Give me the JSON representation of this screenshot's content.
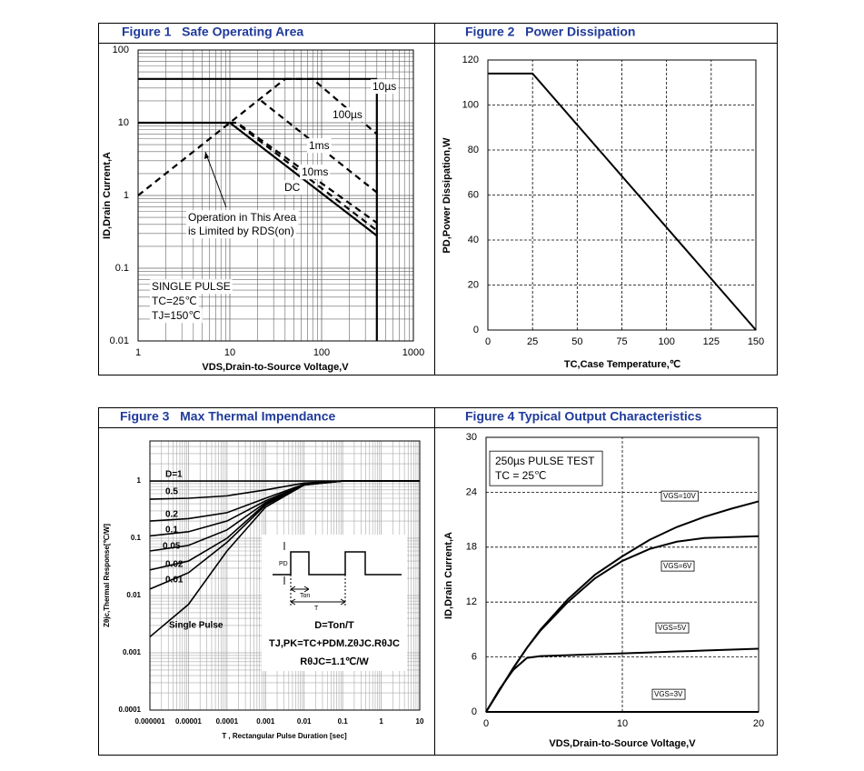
{
  "chart_data": [
    {
      "type": "line",
      "title": "Figure 1   Safe Operating Area",
      "x_label": "VDS,Drain-to-Source Voltage,V",
      "y_label": "ID,Drain Current,A",
      "log_x": true,
      "log_y": true,
      "grid": true,
      "xlim": [
        1,
        1000
      ],
      "ylim": [
        0.01,
        100
      ],
      "xticks": [
        1,
        10,
        100,
        1000
      ],
      "yticks": [
        0.01,
        0.1,
        1,
        10,
        100
      ],
      "series": [
        {
          "color": "#000000",
          "dashed": true,
          "x": [
            1,
            40
          ],
          "values": [
            1,
            40
          ]
        },
        {
          "color": "#000000",
          "x": [
            1,
            400
          ],
          "values": [
            40,
            40
          ]
        },
        {
          "color": "#000000",
          "x": [
            1,
            10
          ],
          "values": [
            10,
            10
          ]
        },
        {
          "color": "#000000",
          "x": [
            400,
            400
          ],
          "values": [
            0.01,
            40
          ]
        },
        {
          "name": "10µs",
          "color": "#000000",
          "dashed": true,
          "x": [
            40,
            80,
            400
          ],
          "values": [
            40,
            40,
            7
          ]
        },
        {
          "name": "100µs",
          "color": "#000000",
          "dashed": true,
          "x": [
            22,
            400
          ],
          "values": [
            20,
            1.1
          ]
        },
        {
          "name": "1ms",
          "color": "#000000",
          "dashed": true,
          "x": [
            10,
            12,
            400
          ],
          "values": [
            10,
            10,
            0.42
          ]
        },
        {
          "name": "10ms",
          "color": "#000000",
          "dashed": true,
          "x": [
            13,
            400
          ],
          "values": [
            9,
            0.33
          ]
        },
        {
          "name": "DC",
          "color": "#000000",
          "x": [
            10,
            400
          ],
          "values": [
            10,
            0.28
          ]
        }
      ],
      "annotations": [
        "Operation in This Area",
        "is Limited by RDS(on)",
        "SINGLE PULSE",
        "TC=25℃",
        "TJ=150℃"
      ]
    },
    {
      "type": "line",
      "title": "Figure 2   Power Dissipation",
      "x_label": "TC,Case Temperature,℃",
      "y_label": "PD,Power Dissipation,W",
      "grid": true,
      "grid_style": "dashed",
      "xlim": [
        0,
        150
      ],
      "ylim": [
        0,
        120
      ],
      "xticks": [
        0,
        25,
        50,
        75,
        100,
        125,
        150
      ],
      "yticks": [
        0,
        20,
        40,
        60,
        80,
        100,
        120
      ],
      "x": [
        0,
        25,
        150
      ],
      "series": [
        {
          "color": "#000000",
          "values": [
            114,
            114,
            0
          ]
        }
      ]
    },
    {
      "type": "line",
      "title": "Figure 3   Max Thermal Impendance",
      "x_label": "T , Rectangular Pulse Duration [sec]",
      "y_label": "Zθjc,Thermal Response[℃/W]",
      "log_x": true,
      "log_y": true,
      "grid": true,
      "xlim": [
        1e-06,
        10
      ],
      "ylim": [
        0.0001,
        5
      ],
      "xticks": [
        1e-06,
        1e-05,
        0.0001,
        0.001,
        0.01,
        0.1,
        1,
        10
      ],
      "yticks": [
        0.0001,
        0.001,
        0.01,
        0.1,
        1
      ],
      "x": [
        1e-06,
        1e-05,
        0.0001,
        0.001,
        0.01,
        0.1,
        1,
        10
      ],
      "series": [
        {
          "name": "D=1",
          "color": "#000000",
          "values": [
            1,
            1,
            1,
            1,
            1,
            1,
            1,
            1
          ]
        },
        {
          "name": "0.5",
          "color": "#000000",
          "values": [
            0.48,
            0.5,
            0.55,
            0.7,
            0.92,
            1,
            1,
            1
          ]
        },
        {
          "name": "0.2",
          "color": "#000000",
          "values": [
            0.2,
            0.22,
            0.28,
            0.5,
            0.88,
            1,
            1,
            1
          ]
        },
        {
          "name": "0.1",
          "color": "#000000",
          "values": [
            0.11,
            0.13,
            0.2,
            0.45,
            0.87,
            1,
            1,
            1
          ]
        },
        {
          "name": "0.05",
          "color": "#000000",
          "values": [
            0.06,
            0.075,
            0.14,
            0.42,
            0.86,
            1,
            1,
            1
          ]
        },
        {
          "name": "0.02",
          "color": "#000000",
          "values": [
            0.028,
            0.04,
            0.1,
            0.4,
            0.86,
            1,
            1,
            1
          ]
        },
        {
          "name": "0.01",
          "color": "#000000",
          "values": [
            0.013,
            0.025,
            0.085,
            0.38,
            0.85,
            1,
            1,
            1
          ]
        },
        {
          "name": "Single Pulse",
          "color": "#000000",
          "values": [
            0.0019,
            0.007,
            0.06,
            0.35,
            0.85,
            1,
            1,
            1
          ]
        }
      ],
      "annotations": [
        "PD",
        "Ton",
        "T",
        "D=Ton/T",
        "TJ,PK=TC+PDM.ZθJC.RθJC",
        "RθJC=1.1℃/W"
      ]
    },
    {
      "type": "line",
      "title": "Figure 4 Typical Output Characteristics",
      "x_label": "VDS,Drain-to-Source Voltage,V",
      "y_label": "ID,Drain Current,A",
      "grid": true,
      "grid_style": "dashed",
      "xlim": [
        0,
        20
      ],
      "ylim": [
        0,
        30
      ],
      "xticks": [
        0,
        10,
        20
      ],
      "yticks": [
        0,
        6,
        12,
        18,
        24,
        30
      ],
      "x": [
        0,
        1,
        2,
        3,
        4,
        6,
        8,
        10,
        12,
        14,
        16,
        18,
        20
      ],
      "series": [
        {
          "name": "VGS=10V",
          "color": "#000000",
          "values": [
            0,
            2.4,
            4.8,
            7,
            9,
            12.3,
            15,
            17,
            18.8,
            20.2,
            21.3,
            22.2,
            23
          ]
        },
        {
          "name": "VGS=6V",
          "color": "#000000",
          "values": [
            0,
            2.4,
            4.8,
            7,
            8.9,
            12,
            14.6,
            16.5,
            17.8,
            18.6,
            19,
            19.1,
            19.2
          ]
        },
        {
          "name": "VGS=5V",
          "color": "#000000",
          "values": [
            0,
            2.5,
            4.6,
            5.9,
            6.1,
            6.2,
            6.3,
            6.4,
            6.5,
            6.6,
            6.7,
            6.8,
            6.9
          ]
        },
        {
          "name": "VGS=3V",
          "color": "#000000",
          "values": [
            0,
            0,
            0,
            0,
            0,
            0,
            0,
            0,
            0,
            0,
            0,
            0,
            0
          ]
        }
      ],
      "annotations": [
        "250µs PULSE TEST",
        "TC = 25℃"
      ]
    }
  ]
}
